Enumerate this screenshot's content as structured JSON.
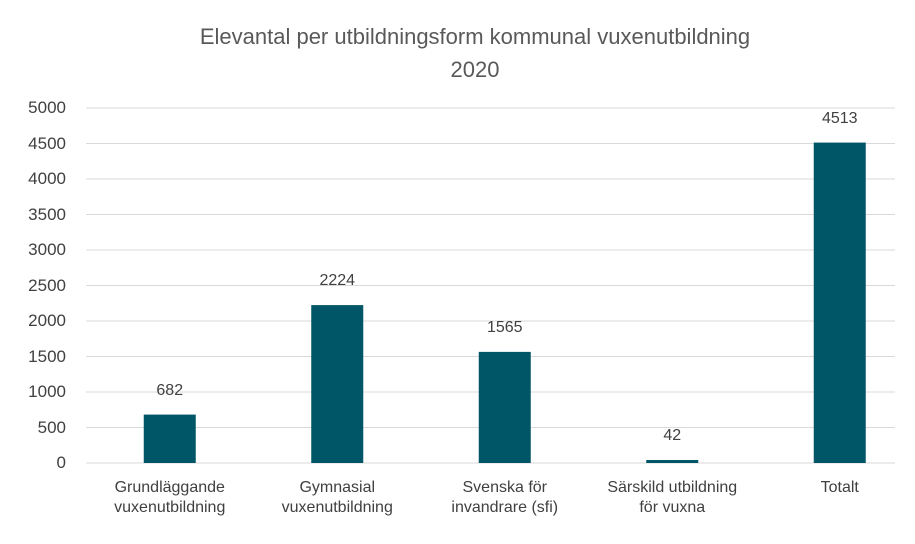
{
  "chart_data": {
    "type": "bar",
    "title": "Elevantal per utbildningsform kommunal vuxenutbildning 2020",
    "categories": [
      "Grundläggande vuxenutbildning",
      "Gymnasial vuxenutbildning",
      "Svenska för invandrare (sfi)",
      "Särskild utbildning för vuxna",
      "Totalt"
    ],
    "values": [
      682,
      2224,
      1565,
      42,
      4513
    ],
    "color": "#005566",
    "ylim": [
      0,
      5000
    ],
    "yticks": [
      0,
      500,
      1000,
      1500,
      2000,
      2500,
      3000,
      3500,
      4000,
      4500,
      5000
    ],
    "grid": true
  }
}
